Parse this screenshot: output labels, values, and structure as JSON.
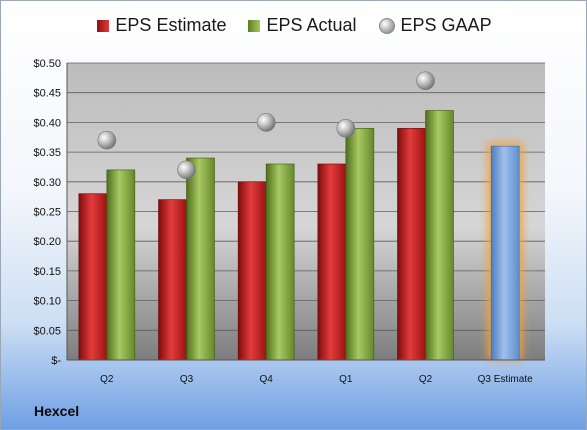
{
  "company": "Hexcel",
  "legend": {
    "estimate": "EPS Estimate",
    "actual": "EPS Actual",
    "gaap": "EPS GAAP"
  },
  "colors": {
    "estimate": "#d42a2a",
    "actual": "#8fb24a",
    "gaap": "#b5b5b5",
    "forecast": "#7ea6d9",
    "forecast_glow": "#f2a23c"
  },
  "chart_data": {
    "type": "bar",
    "categories": [
      "Q2",
      "Q3",
      "Q4",
      "Q1",
      "Q2",
      "Q3 Estimate"
    ],
    "series": [
      {
        "name": "EPS Estimate",
        "values": [
          0.28,
          0.27,
          0.3,
          0.33,
          0.39,
          null
        ]
      },
      {
        "name": "EPS Actual",
        "values": [
          0.32,
          0.34,
          0.33,
          0.39,
          0.42,
          null
        ]
      },
      {
        "name": "EPS GAAP",
        "values": [
          0.37,
          0.32,
          0.4,
          0.39,
          0.47,
          null
        ]
      }
    ],
    "forecast": {
      "category": "Q3 Estimate",
      "value": 0.36
    },
    "y_ticks": [
      "$-",
      "$0.05",
      "$0.10",
      "$0.15",
      "$0.20",
      "$0.25",
      "$0.30",
      "$0.35",
      "$0.40",
      "$0.45",
      "$0.50"
    ],
    "ylim": [
      0,
      0.5
    ],
    "grid": true,
    "legend_position": "top",
    "title": "",
    "xlabel": "",
    "ylabel": ""
  }
}
